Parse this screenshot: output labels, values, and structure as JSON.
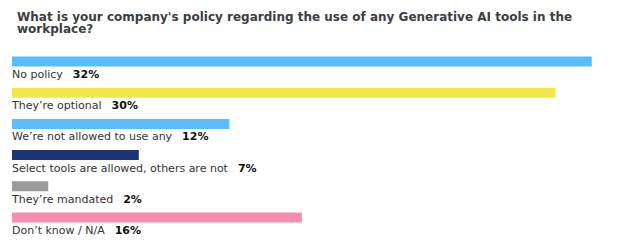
{
  "chart_data": {
    "type": "bar",
    "orientation": "horizontal",
    "title": "What is your company's policy regarding the use of any Generative AI tools in the workplace?",
    "categories": [
      "No policy",
      "They’re optional",
      "We’re not allowed to use any",
      "Select tools are allowed, others are not",
      "They’re mandated",
      "Don’t know / N/A"
    ],
    "values": [
      32,
      30,
      12,
      7,
      2,
      16
    ],
    "value_labels": [
      "32%",
      "30%",
      "12%",
      "7%",
      "2%",
      "16%"
    ],
    "colors": [
      "#5BBCF8",
      "#EEE84A",
      "#5BBCF8",
      "#1B3575",
      "#9B9B9B",
      "#F48FB1"
    ],
    "xlim": [
      0,
      34
    ],
    "data_labels": true,
    "tick_labels": false,
    "grid": false
  }
}
